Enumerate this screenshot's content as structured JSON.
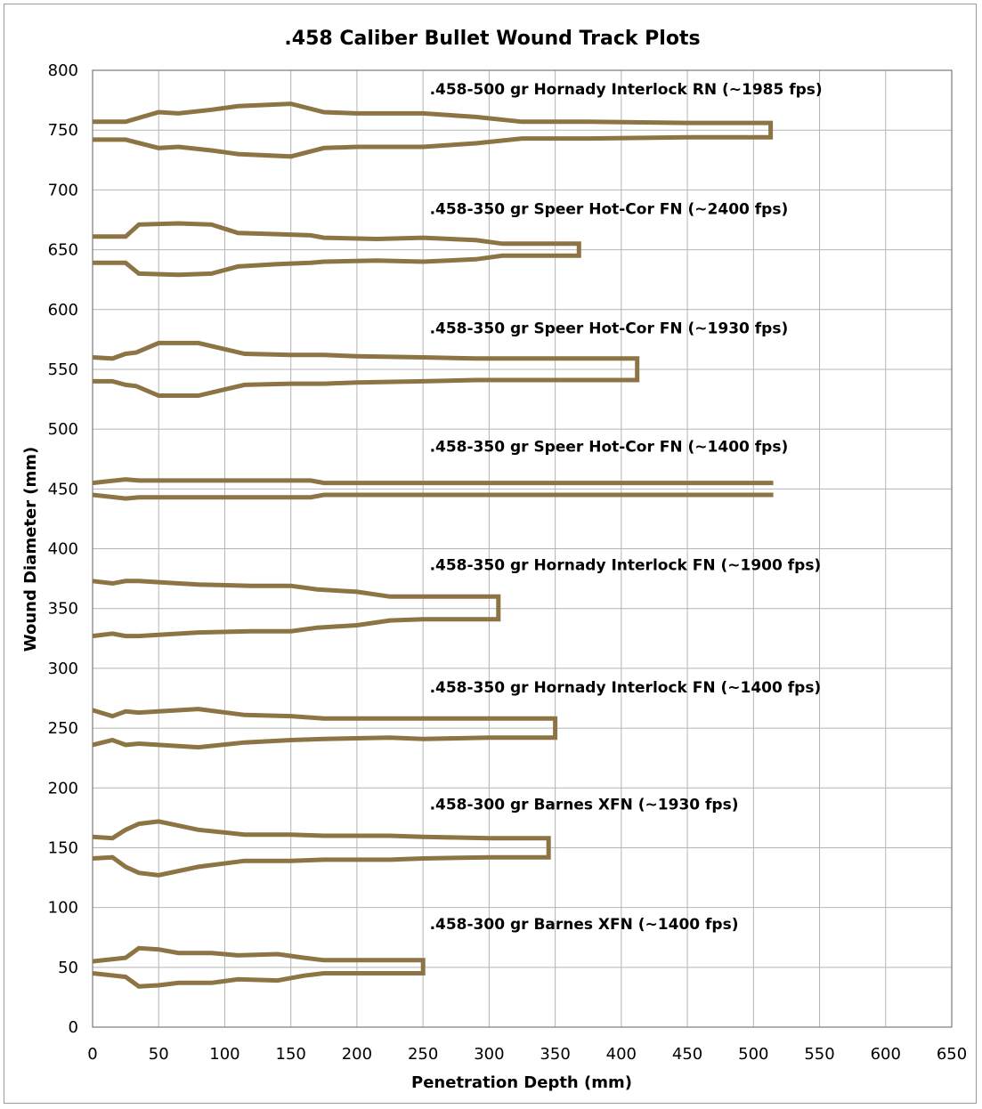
{
  "chart_data": {
    "type": "line",
    "title": ".458 Caliber Bullet Wound Track Plots",
    "xlabel": "Penetration Depth (mm)",
    "ylabel": "Wound Diameter (mm)",
    "xlim": [
      0,
      650
    ],
    "ylim": [
      0,
      800
    ],
    "xticks": [
      0,
      50,
      100,
      150,
      200,
      250,
      300,
      350,
      400,
      450,
      500,
      550,
      600,
      650
    ],
    "yticks": [
      0,
      50,
      100,
      150,
      200,
      250,
      300,
      350,
      400,
      450,
      500,
      550,
      600,
      650,
      700,
      750,
      800
    ],
    "grid": true,
    "line_color": "#8d7444",
    "series": [
      {
        "name": ".458-500 gr Hornady Interlock RN (~1985 fps)",
        "label_at": [
          255,
          780
        ],
        "points": [
          [
            0,
            757
          ],
          [
            25,
            757
          ],
          [
            50,
            765
          ],
          [
            65,
            764
          ],
          [
            90,
            767
          ],
          [
            110,
            770
          ],
          [
            150,
            772
          ],
          [
            175,
            765
          ],
          [
            200,
            764
          ],
          [
            225,
            764
          ],
          [
            250,
            764
          ],
          [
            290,
            761
          ],
          [
            325,
            757
          ],
          [
            375,
            757
          ],
          [
            450,
            756
          ],
          [
            513,
            756
          ],
          [
            513,
            744
          ],
          [
            450,
            744
          ],
          [
            375,
            743
          ],
          [
            325,
            743
          ],
          [
            290,
            739
          ],
          [
            250,
            736
          ],
          [
            225,
            736
          ],
          [
            200,
            736
          ],
          [
            175,
            735
          ],
          [
            150,
            728
          ],
          [
            110,
            730
          ],
          [
            90,
            733
          ],
          [
            65,
            736
          ],
          [
            50,
            735
          ],
          [
            25,
            742
          ],
          [
            0,
            742
          ]
        ]
      },
      {
        "name": ".458-350 gr Speer Hot-Cor FN (~2400 fps)",
        "label_at": [
          255,
          680
        ],
        "points": [
          [
            0,
            661
          ],
          [
            25,
            661
          ],
          [
            35,
            671
          ],
          [
            65,
            672
          ],
          [
            90,
            671
          ],
          [
            110,
            664
          ],
          [
            140,
            663
          ],
          [
            165,
            662
          ],
          [
            175,
            660
          ],
          [
            215,
            659
          ],
          [
            250,
            660
          ],
          [
            290,
            658
          ],
          [
            310,
            655
          ],
          [
            368,
            655
          ],
          [
            368,
            645
          ],
          [
            310,
            645
          ],
          [
            290,
            642
          ],
          [
            250,
            640
          ],
          [
            215,
            641
          ],
          [
            175,
            640
          ],
          [
            165,
            639
          ],
          [
            140,
            638
          ],
          [
            110,
            636
          ],
          [
            90,
            630
          ],
          [
            65,
            629
          ],
          [
            35,
            630
          ],
          [
            25,
            639
          ],
          [
            0,
            639
          ]
        ]
      },
      {
        "name": ".458-350 gr Speer Hot-Cor FN (~1930 fps)",
        "label_at": [
          255,
          580
        ],
        "points": [
          [
            0,
            560
          ],
          [
            15,
            559
          ],
          [
            25,
            563
          ],
          [
            33,
            564
          ],
          [
            50,
            572
          ],
          [
            80,
            572
          ],
          [
            115,
            563
          ],
          [
            150,
            562
          ],
          [
            175,
            562
          ],
          [
            200,
            561
          ],
          [
            250,
            560
          ],
          [
            290,
            559
          ],
          [
            412,
            559
          ],
          [
            412,
            541
          ],
          [
            290,
            541
          ],
          [
            250,
            540
          ],
          [
            200,
            539
          ],
          [
            175,
            538
          ],
          [
            150,
            538
          ],
          [
            115,
            537
          ],
          [
            80,
            528
          ],
          [
            50,
            528
          ],
          [
            33,
            536
          ],
          [
            25,
            537
          ],
          [
            15,
            540
          ],
          [
            0,
            540
          ]
        ]
      },
      {
        "name": ".458-350 gr Speer Hot-Cor FN (~1400 fps)",
        "label_at": [
          255,
          481
        ],
        "points": [
          [
            0,
            455
          ],
          [
            25,
            458
          ],
          [
            35,
            457
          ],
          [
            100,
            457
          ],
          [
            165,
            457
          ],
          [
            175,
            455
          ],
          [
            300,
            455
          ],
          [
            515,
            455
          ]
        ],
        "points_lower": [
          [
            0,
            445
          ],
          [
            25,
            442
          ],
          [
            35,
            443
          ],
          [
            100,
            443
          ],
          [
            165,
            443
          ],
          [
            175,
            445
          ],
          [
            300,
            445
          ],
          [
            515,
            445
          ]
        ]
      },
      {
        "name": ".458-350 gr Hornady Interlock FN (~1900 fps)",
        "label_at": [
          255,
          382
        ],
        "points": [
          [
            0,
            373
          ],
          [
            15,
            371
          ],
          [
            25,
            373
          ],
          [
            35,
            373
          ],
          [
            50,
            372
          ],
          [
            80,
            370
          ],
          [
            120,
            369
          ],
          [
            150,
            369
          ],
          [
            170,
            366
          ],
          [
            200,
            364
          ],
          [
            225,
            360
          ],
          [
            250,
            360
          ],
          [
            307,
            360
          ],
          [
            307,
            341
          ],
          [
            250,
            341
          ],
          [
            225,
            340
          ],
          [
            200,
            336
          ],
          [
            170,
            334
          ],
          [
            150,
            331
          ],
          [
            120,
            331
          ],
          [
            80,
            330
          ],
          [
            50,
            328
          ],
          [
            35,
            327
          ],
          [
            25,
            327
          ],
          [
            15,
            329
          ],
          [
            0,
            327
          ]
        ]
      },
      {
        "name": ".458-350 gr Hornady Interlock FN (~1400 fps)",
        "label_at": [
          255,
          280
        ],
        "points": [
          [
            0,
            265
          ],
          [
            15,
            260
          ],
          [
            25,
            264
          ],
          [
            35,
            263
          ],
          [
            50,
            264
          ],
          [
            80,
            266
          ],
          [
            115,
            261
          ],
          [
            150,
            260
          ],
          [
            175,
            258
          ],
          [
            225,
            258
          ],
          [
            250,
            258
          ],
          [
            300,
            258
          ],
          [
            350,
            258
          ],
          [
            350,
            242
          ],
          [
            300,
            242
          ],
          [
            250,
            241
          ],
          [
            225,
            242
          ],
          [
            175,
            241
          ],
          [
            150,
            240
          ],
          [
            115,
            238
          ],
          [
            80,
            234
          ],
          [
            50,
            236
          ],
          [
            35,
            237
          ],
          [
            25,
            236
          ],
          [
            15,
            240
          ],
          [
            0,
            236
          ]
        ]
      },
      {
        "name": ".458-300 gr Barnes XFN (~1930 fps)",
        "label_at": [
          255,
          182
        ],
        "points": [
          [
            0,
            159
          ],
          [
            15,
            158
          ],
          [
            25,
            165
          ],
          [
            35,
            170
          ],
          [
            50,
            172
          ],
          [
            80,
            165
          ],
          [
            115,
            161
          ],
          [
            150,
            161
          ],
          [
            175,
            160
          ],
          [
            225,
            160
          ],
          [
            250,
            159
          ],
          [
            300,
            158
          ],
          [
            345,
            158
          ],
          [
            345,
            142
          ],
          [
            300,
            142
          ],
          [
            250,
            141
          ],
          [
            225,
            140
          ],
          [
            175,
            140
          ],
          [
            150,
            139
          ],
          [
            115,
            139
          ],
          [
            80,
            134
          ],
          [
            50,
            127
          ],
          [
            35,
            129
          ],
          [
            25,
            134
          ],
          [
            15,
            142
          ],
          [
            0,
            141
          ]
        ]
      },
      {
        "name": ".458-300 gr Barnes XFN (~1400 fps)",
        "label_at": [
          255,
          82
        ],
        "points": [
          [
            0,
            55
          ],
          [
            25,
            58
          ],
          [
            35,
            66
          ],
          [
            50,
            65
          ],
          [
            65,
            62
          ],
          [
            90,
            62
          ],
          [
            110,
            60
          ],
          [
            140,
            61
          ],
          [
            160,
            58
          ],
          [
            175,
            56
          ],
          [
            200,
            56
          ],
          [
            250,
            56
          ],
          [
            250,
            45
          ],
          [
            200,
            45
          ],
          [
            175,
            45
          ],
          [
            160,
            43
          ],
          [
            140,
            39
          ],
          [
            110,
            40
          ],
          [
            90,
            37
          ],
          [
            65,
            37
          ],
          [
            50,
            35
          ],
          [
            35,
            34
          ],
          [
            25,
            42
          ],
          [
            0,
            45
          ]
        ]
      }
    ]
  }
}
